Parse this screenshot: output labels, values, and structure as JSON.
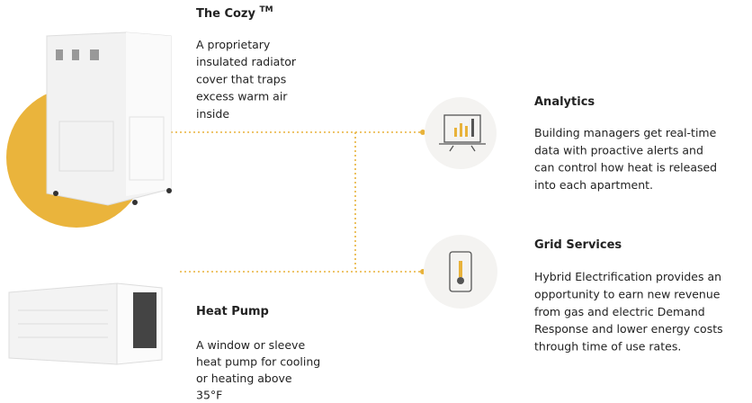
{
  "cozy": {
    "title": "The Cozy",
    "trademark": "TM",
    "lines": [
      "A proprietary",
      "insulated radiator",
      "cover that traps",
      "excess warm air",
      "inside"
    ]
  },
  "heat_pump": {
    "title": "Heat Pump",
    "lines": [
      "A window or sleeve",
      "heat pump for cooling",
      "or heating above",
      "35°F"
    ]
  },
  "analytics": {
    "title": "Analytics",
    "lines": [
      "Building managers get real-time",
      "data with proactive alerts and",
      "can control how heat is released",
      "into each apartment."
    ]
  },
  "grid_services": {
    "title": "Grid Services",
    "lines": [
      "Hybrid Electrification provides an",
      "opportunity to earn new revenue",
      "from gas and electric Demand",
      "Response and lower energy costs",
      "through time of use rates."
    ]
  }
}
